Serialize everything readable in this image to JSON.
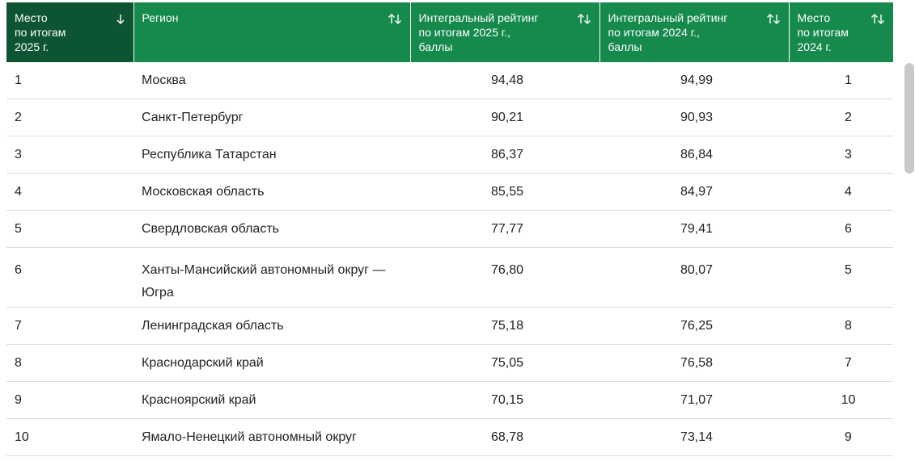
{
  "table": {
    "headers": [
      "Место\nпо итогам\n2025 г.",
      "Регион",
      "Интегральный рейтинг\nпо итогам 2025 г.,\nбаллы",
      "Интегральный рейтинг\nпо итогам 2024 г.,\nбаллы",
      "Место\nпо итогам\n2024 г."
    ],
    "rows": [
      [
        "1",
        "Москва",
        "94,48",
        "94,99",
        "1"
      ],
      [
        "2",
        "Санкт-Петербург",
        "90,21",
        "90,93",
        "2"
      ],
      [
        "3",
        "Республика Татарстан",
        "86,37",
        "86,84",
        "3"
      ],
      [
        "4",
        "Московская область",
        "85,55",
        "84,97",
        "4"
      ],
      [
        "5",
        "Свердловская область",
        "77,77",
        "79,41",
        "6"
      ],
      [
        "6",
        "Ханты-Мансийский автономный округ — Югра",
        "76,80",
        "80,07",
        "5"
      ],
      [
        "7",
        "Ленинградская область",
        "75,18",
        "76,25",
        "8"
      ],
      [
        "8",
        "Краснодарский край",
        "75,05",
        "76,58",
        "7"
      ],
      [
        "9",
        "Красноярский край",
        "70,15",
        "71,07",
        "10"
      ],
      [
        "10",
        "Ямало-Ненецкий автономный округ",
        "68,78",
        "73,14",
        "9"
      ]
    ]
  }
}
